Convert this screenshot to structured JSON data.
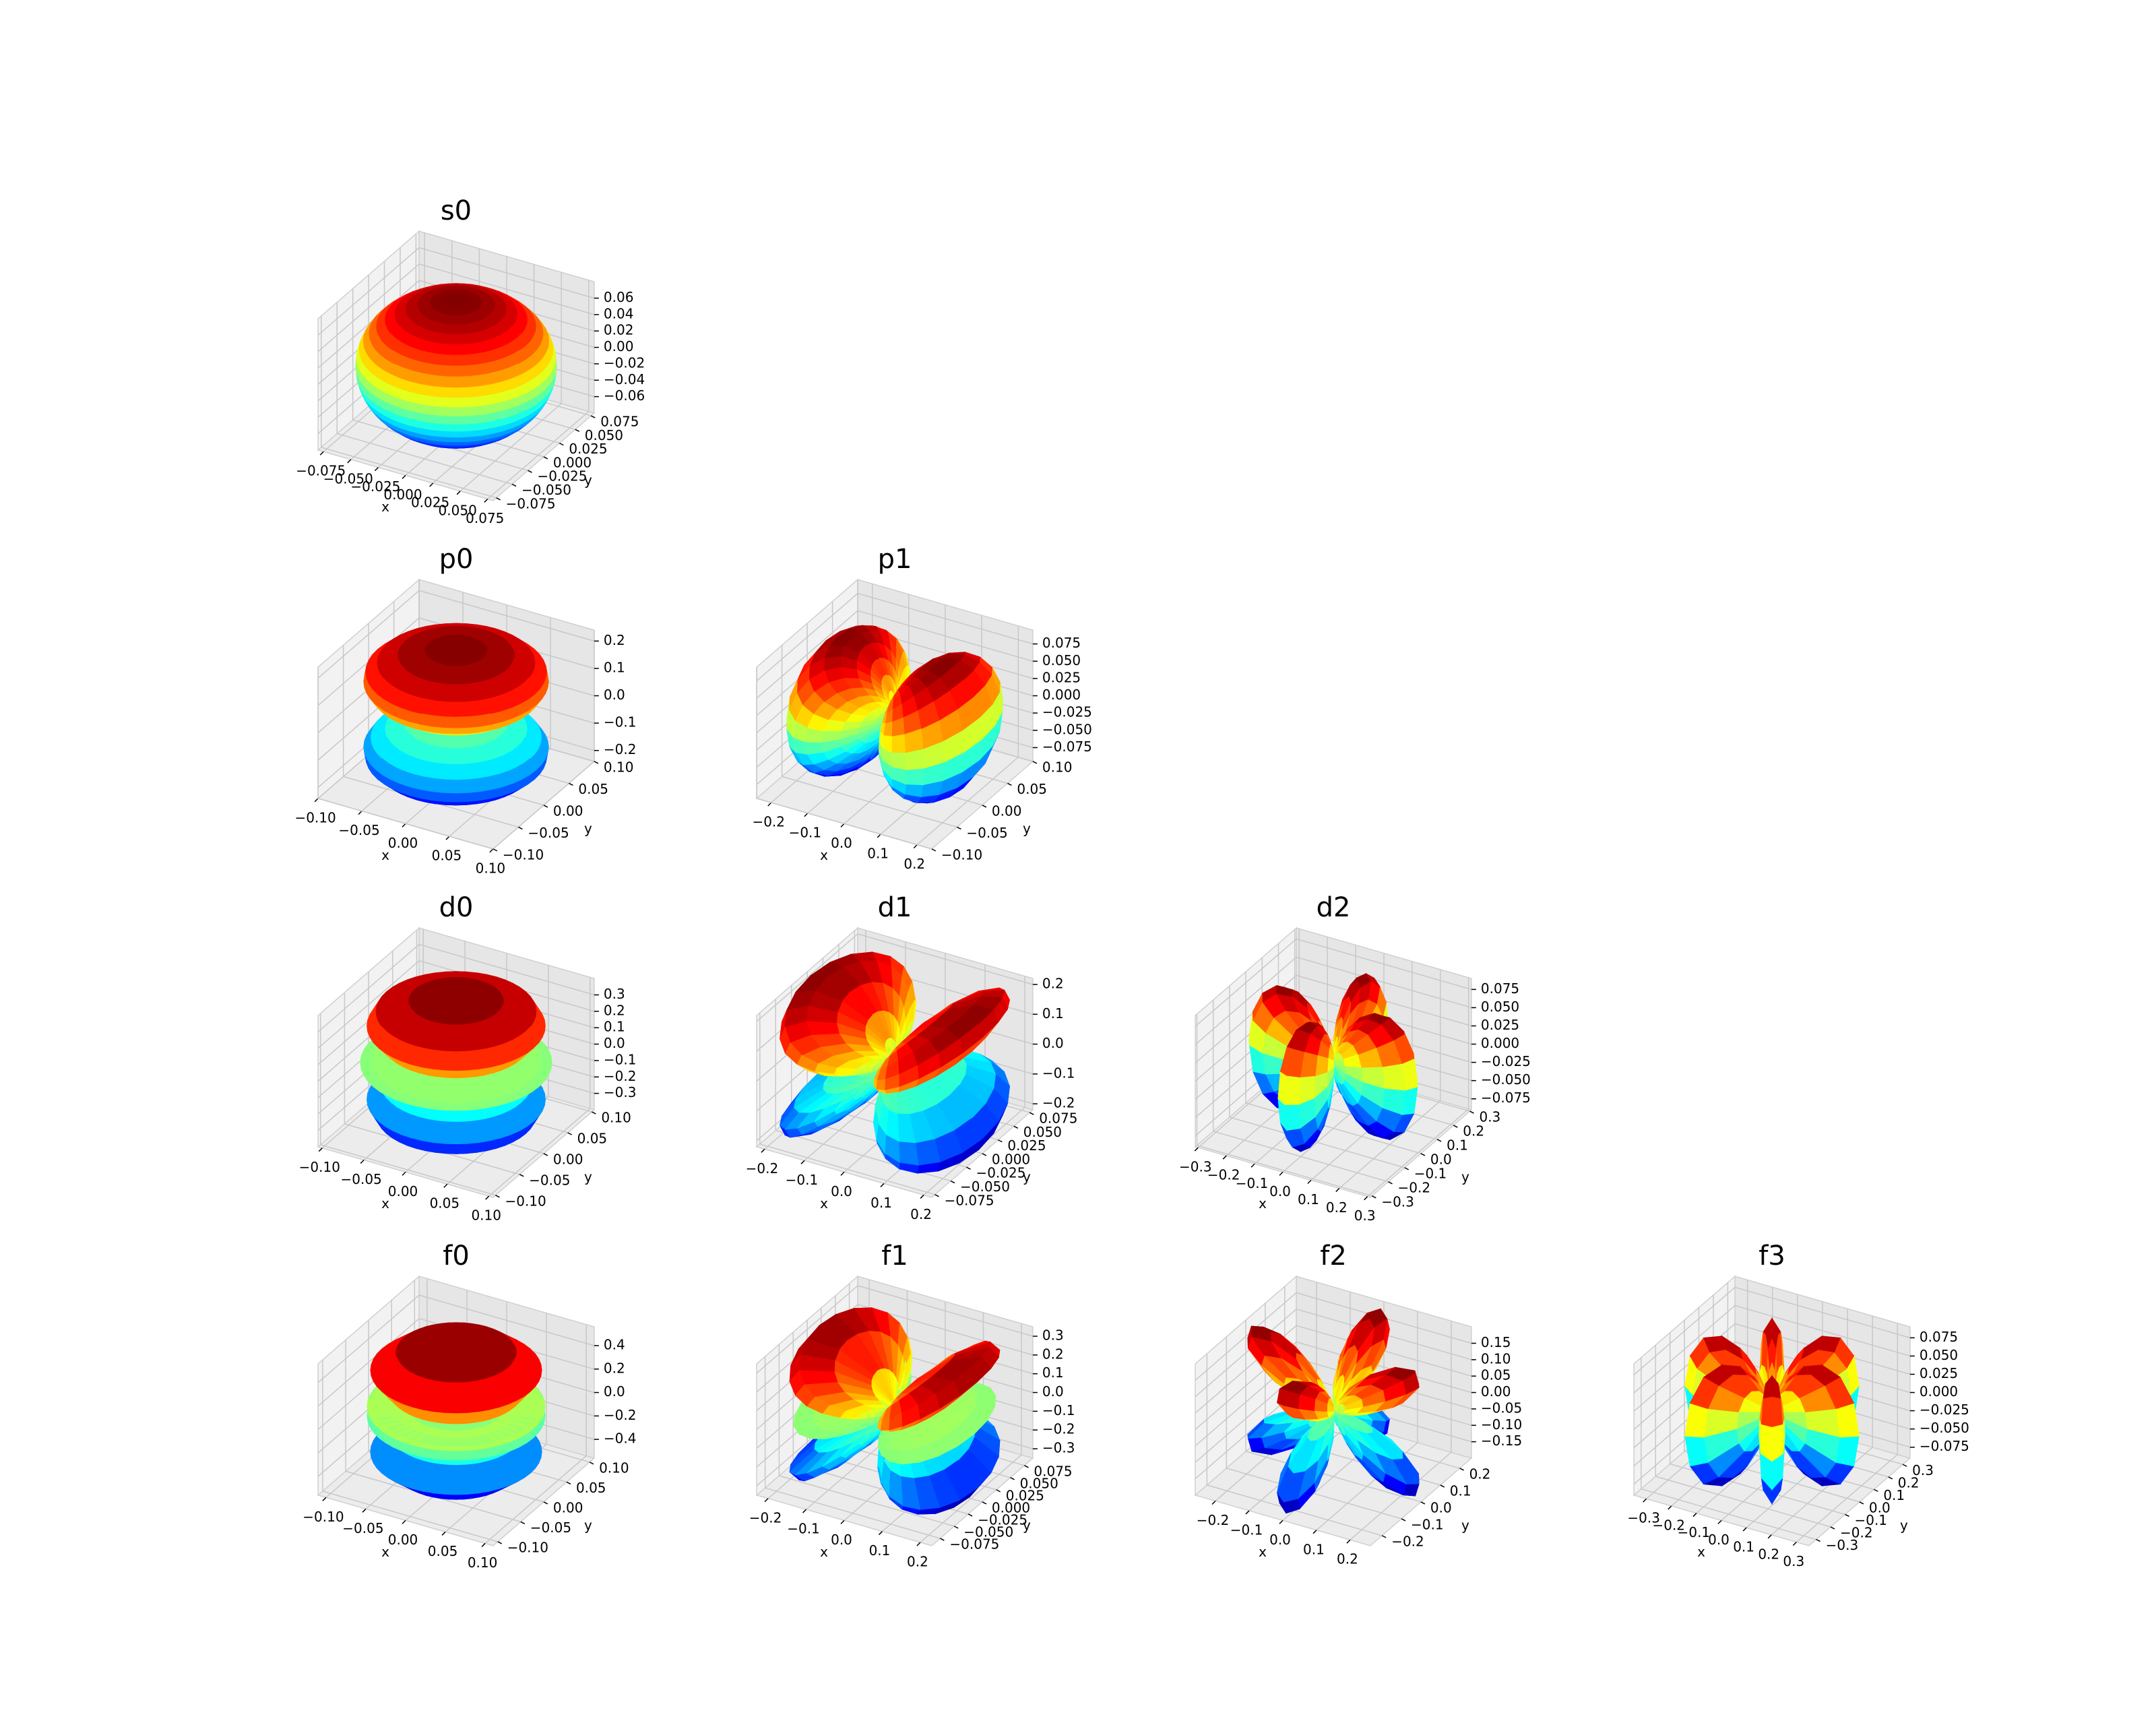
{
  "chart_data": [
    {
      "type": "surface3d",
      "title": "s0",
      "xlabel": "x",
      "ylabel": "y",
      "colormap": "jet",
      "xlim": [
        -0.08,
        0.08
      ],
      "ylim": [
        -0.08,
        0.08
      ],
      "zlim": [
        -0.08,
        0.08
      ],
      "xticks": [
        {
          "value": -0.075,
          "label": "−0.075"
        },
        {
          "value": -0.05,
          "label": "−0.050"
        },
        {
          "value": -0.025,
          "label": "−0.025"
        },
        {
          "value": 0,
          "label": "0.000"
        },
        0.025,
        {
          "value": 0.05,
          "label": "0.050"
        },
        0.075
      ],
      "yticks": [
        {
          "value": -0.075,
          "label": "−0.075"
        },
        {
          "value": -0.05,
          "label": "−0.050"
        },
        {
          "value": -0.025,
          "label": "−0.025"
        },
        {
          "value": 0,
          "label": "0.000"
        },
        0.025,
        {
          "value": 0.05,
          "label": "0.050"
        },
        0.075
      ],
      "zticks": [
        {
          "value": -0.06,
          "label": "−0.06"
        },
        {
          "value": -0.04,
          "label": "−0.04"
        },
        {
          "value": -0.02,
          "label": "−0.02"
        },
        {
          "value": 0,
          "label": "0.00"
        },
        0.02,
        0.04,
        0.06
      ]
    },
    {
      "type": "surface3d",
      "title": "p0",
      "xlabel": "x",
      "ylabel": "y",
      "colormap": "jet",
      "xlim": [
        -0.1,
        0.1
      ],
      "ylim": [
        -0.1,
        0.1
      ],
      "zlim": [
        -0.24,
        0.24
      ],
      "xticks": [
        {
          "value": -0.1,
          "label": "−0.10"
        },
        {
          "value": -0.05,
          "label": "−0.05"
        },
        {
          "value": 0,
          "label": "0.00"
        },
        0.05,
        {
          "value": 0.1,
          "label": "0.10"
        }
      ],
      "yticks": [
        {
          "value": -0.1,
          "label": "−0.10"
        },
        {
          "value": -0.05,
          "label": "−0.05"
        },
        {
          "value": 0,
          "label": "0.00"
        },
        0.05,
        {
          "value": 0.1,
          "label": "0.10"
        }
      ],
      "zticks": [
        {
          "value": -0.2,
          "label": "−0.2"
        },
        {
          "value": -0.1,
          "label": "−0.1"
        },
        {
          "value": 0,
          "label": "0.0"
        },
        0.1,
        0.2
      ]
    },
    {
      "type": "surface3d",
      "title": "p1",
      "xlabel": "x",
      "ylabel": "y",
      "colormap": "jet",
      "xlim": [
        -0.24,
        0.24
      ],
      "ylim": [
        -0.1,
        0.1
      ],
      "zlim": [
        -0.095,
        0.095
      ],
      "xticks": [
        {
          "value": -0.2,
          "label": "−0.2"
        },
        {
          "value": -0.1,
          "label": "−0.1"
        },
        {
          "value": 0,
          "label": "0.0"
        },
        0.1,
        0.2
      ],
      "yticks": [
        {
          "value": -0.1,
          "label": "−0.10"
        },
        {
          "value": -0.05,
          "label": "−0.05"
        },
        {
          "value": 0,
          "label": "0.00"
        },
        0.05,
        {
          "value": 0.1,
          "label": "0.10"
        }
      ],
      "zticks": [
        {
          "value": -0.075,
          "label": "−0.075"
        },
        {
          "value": -0.05,
          "label": "−0.050"
        },
        {
          "value": -0.025,
          "label": "−0.025"
        },
        {
          "value": 0,
          "label": "0.000"
        },
        0.025,
        {
          "value": 0.05,
          "label": "0.050"
        },
        0.075
      ]
    },
    {
      "type": "surface3d",
      "title": "d0",
      "xlabel": "x",
      "ylabel": "y",
      "colormap": "jet",
      "xlim": [
        -0.105,
        0.105
      ],
      "ylim": [
        -0.105,
        0.105
      ],
      "zlim": [
        -0.4,
        0.4
      ],
      "xticks": [
        {
          "value": -0.1,
          "label": "−0.10"
        },
        {
          "value": -0.05,
          "label": "−0.05"
        },
        {
          "value": 0,
          "label": "0.00"
        },
        0.05,
        {
          "value": 0.1,
          "label": "0.10"
        }
      ],
      "yticks": [
        {
          "value": -0.1,
          "label": "−0.10"
        },
        {
          "value": -0.05,
          "label": "−0.05"
        },
        {
          "value": 0,
          "label": "0.00"
        },
        0.05,
        {
          "value": 0.1,
          "label": "0.10"
        }
      ],
      "zticks": [
        {
          "value": -0.3,
          "label": "−0.3"
        },
        {
          "value": -0.2,
          "label": "−0.2"
        },
        {
          "value": -0.1,
          "label": "−0.1"
        },
        {
          "value": 0,
          "label": "0.0"
        },
        0.1,
        0.2,
        0.3
      ]
    },
    {
      "type": "surface3d",
      "title": "d1",
      "xlabel": "x",
      "ylabel": "y",
      "colormap": "jet",
      "xlim": [
        -0.22,
        0.22
      ],
      "ylim": [
        -0.08,
        0.08
      ],
      "zlim": [
        -0.22,
        0.22
      ],
      "xticks": [
        {
          "value": -0.2,
          "label": "−0.2"
        },
        {
          "value": -0.1,
          "label": "−0.1"
        },
        {
          "value": 0,
          "label": "0.0"
        },
        0.1,
        0.2
      ],
      "yticks": [
        {
          "value": -0.075,
          "label": "−0.075"
        },
        {
          "value": -0.05,
          "label": "−0.050"
        },
        {
          "value": -0.025,
          "label": "−0.025"
        },
        {
          "value": 0,
          "label": "0.000"
        },
        0.025,
        {
          "value": 0.05,
          "label": "0.050"
        },
        0.075
      ],
      "zticks": [
        {
          "value": -0.2,
          "label": "−0.2"
        },
        {
          "value": -0.1,
          "label": "−0.1"
        },
        {
          "value": 0,
          "label": "0.0"
        },
        0.1,
        0.2
      ]
    },
    {
      "type": "surface3d",
      "title": "d2",
      "xlabel": "x",
      "ylabel": "y",
      "colormap": "jet",
      "xlim": [
        -0.31,
        0.31
      ],
      "ylim": [
        -0.31,
        0.31
      ],
      "zlim": [
        -0.09,
        0.09
      ],
      "xticks": [
        {
          "value": -0.3,
          "label": "−0.3"
        },
        {
          "value": -0.2,
          "label": "−0.2"
        },
        {
          "value": -0.1,
          "label": "−0.1"
        },
        {
          "value": 0,
          "label": "0.0"
        },
        0.1,
        0.2,
        0.3
      ],
      "yticks": [
        {
          "value": -0.3,
          "label": "−0.3"
        },
        {
          "value": -0.2,
          "label": "−0.2"
        },
        {
          "value": -0.1,
          "label": "−0.1"
        },
        {
          "value": 0,
          "label": "0.0"
        },
        0.1,
        0.2,
        0.3
      ],
      "zticks": [
        {
          "value": -0.075,
          "label": "−0.075"
        },
        {
          "value": -0.05,
          "label": "−0.050"
        },
        {
          "value": -0.025,
          "label": "−0.025"
        },
        {
          "value": 0,
          "label": "0.000"
        },
        0.025,
        {
          "value": 0.05,
          "label": "0.050"
        },
        0.075
      ]
    },
    {
      "type": "surface3d",
      "title": "f0",
      "xlabel": "x",
      "ylabel": "y",
      "colormap": "jet",
      "xlim": [
        -0.11,
        0.11
      ],
      "ylim": [
        -0.11,
        0.11
      ],
      "zlim": [
        -0.56,
        0.56
      ],
      "xticks": [
        {
          "value": -0.1,
          "label": "−0.10"
        },
        {
          "value": -0.05,
          "label": "−0.05"
        },
        {
          "value": 0,
          "label": "0.00"
        },
        0.05,
        {
          "value": 0.1,
          "label": "0.10"
        }
      ],
      "yticks": [
        {
          "value": -0.1,
          "label": "−0.10"
        },
        {
          "value": -0.05,
          "label": "−0.05"
        },
        {
          "value": 0,
          "label": "0.00"
        },
        0.05,
        {
          "value": 0.1,
          "label": "0.10"
        }
      ],
      "zticks": [
        {
          "value": -0.4,
          "label": "−0.4"
        },
        {
          "value": -0.2,
          "label": "−0.2"
        },
        {
          "value": 0,
          "label": "0.0"
        },
        0.2,
        0.4
      ]
    },
    {
      "type": "surface3d",
      "title": "f1",
      "xlabel": "x",
      "ylabel": "y",
      "colormap": "jet",
      "xlim": [
        -0.23,
        0.23
      ],
      "ylim": [
        -0.09,
        0.09
      ],
      "zlim": [
        -0.35,
        0.35
      ],
      "xticks": [
        {
          "value": -0.2,
          "label": "−0.2"
        },
        {
          "value": -0.1,
          "label": "−0.1"
        },
        {
          "value": 0,
          "label": "0.0"
        },
        0.1,
        0.2
      ],
      "yticks": [
        {
          "value": -0.075,
          "label": "−0.075"
        },
        {
          "value": -0.05,
          "label": "−0.050"
        },
        {
          "value": -0.025,
          "label": "−0.025"
        },
        {
          "value": 0,
          "label": "0.000"
        },
        0.025,
        {
          "value": 0.05,
          "label": "0.050"
        },
        0.075
      ],
      "zticks": [
        {
          "value": -0.3,
          "label": "−0.3"
        },
        {
          "value": -0.2,
          "label": "−0.2"
        },
        {
          "value": -0.1,
          "label": "−0.1"
        },
        {
          "value": 0,
          "label": "0.0"
        },
        0.1,
        0.2,
        0.3
      ]
    },
    {
      "type": "surface3d",
      "title": "f2",
      "xlabel": "x",
      "ylabel": "y",
      "colormap": "jet",
      "xlim": [
        -0.26,
        0.26
      ],
      "ylim": [
        -0.26,
        0.26
      ],
      "zlim": [
        -0.2,
        0.2
      ],
      "xticks": [
        {
          "value": -0.2,
          "label": "−0.2"
        },
        {
          "value": -0.1,
          "label": "−0.1"
        },
        {
          "value": 0,
          "label": "0.0"
        },
        0.1,
        0.2
      ],
      "yticks": [
        {
          "value": -0.2,
          "label": "−0.2"
        },
        {
          "value": -0.1,
          "label": "−0.1"
        },
        {
          "value": 0,
          "label": "0.0"
        },
        0.1,
        0.2
      ],
      "zticks": [
        {
          "value": -0.15,
          "label": "−0.15"
        },
        {
          "value": -0.1,
          "label": "−0.10"
        },
        {
          "value": -0.05,
          "label": "−0.05"
        },
        {
          "value": 0,
          "label": "0.00"
        },
        0.05,
        {
          "value": 0.1,
          "label": "0.10"
        },
        0.15
      ]
    },
    {
      "type": "surface3d",
      "title": "f3",
      "xlabel": "x",
      "ylabel": "y",
      "colormap": "jet",
      "xlim": [
        -0.35,
        0.35
      ],
      "ylim": [
        -0.35,
        0.35
      ],
      "zlim": [
        -0.09,
        0.09
      ],
      "xticks": [
        {
          "value": -0.3,
          "label": "−0.3"
        },
        {
          "value": -0.2,
          "label": "−0.2"
        },
        {
          "value": -0.1,
          "label": "−0.1"
        },
        {
          "value": 0,
          "label": "0.0"
        },
        0.1,
        0.2,
        0.3
      ],
      "yticks": [
        {
          "value": -0.3,
          "label": "−0.3"
        },
        {
          "value": -0.2,
          "label": "−0.2"
        },
        {
          "value": -0.1,
          "label": "−0.1"
        },
        {
          "value": 0,
          "label": "0.0"
        },
        0.1,
        0.2,
        0.3
      ],
      "zticks": [
        {
          "value": -0.075,
          "label": "−0.075"
        },
        {
          "value": -0.05,
          "label": "−0.050"
        },
        {
          "value": -0.025,
          "label": "−0.025"
        },
        {
          "value": 0,
          "label": "0.000"
        },
        0.025,
        {
          "value": 0.05,
          "label": "0.050"
        },
        0.075
      ]
    }
  ]
}
